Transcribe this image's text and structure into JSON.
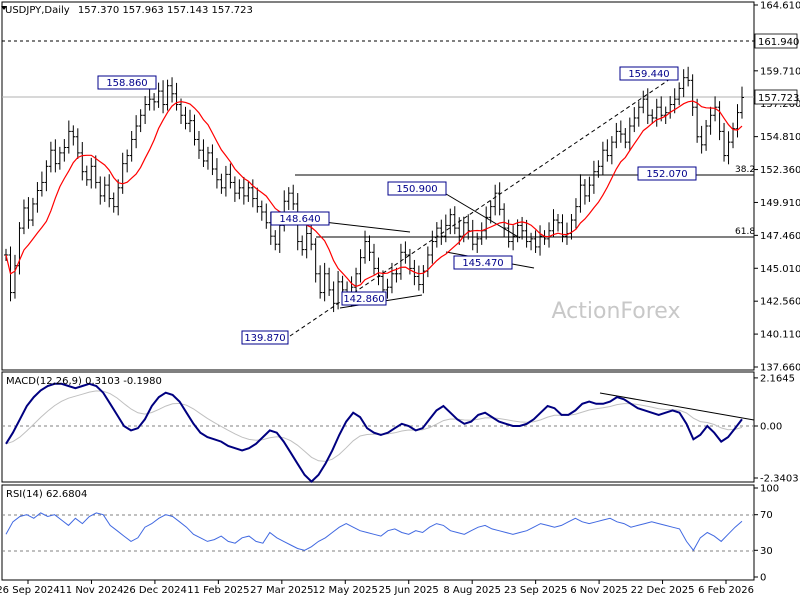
{
  "chart_title": "USDJPY,Daily",
  "ohlc": "157.370 157.963 157.143 157.723",
  "watermark": "ActionForex",
  "colors": {
    "price": "#000000",
    "ma": "#ff0000",
    "macd": "#000080",
    "signal": "#c0c0c0",
    "rsi": "#4169e1",
    "accent_label": "#00008b",
    "watermark": "#c8c8c8"
  },
  "chart_data": [
    {
      "type": "line",
      "panel": "price",
      "ylim": [
        137.66,
        164.61
      ],
      "y_ticks": [
        "164.610",
        "161.940",
        "159.710",
        "157.260",
        "154.810",
        "152.360",
        "149.910",
        "147.460",
        "145.010",
        "142.560",
        "140.110",
        "137.660"
      ],
      "x_ticks": [
        "26 Sep 2024",
        "11 Nov 2024",
        "26 Dec 2024",
        "11 Feb 2025",
        "27 Mar 2025",
        "12 May 2025",
        "25 Jun 2025",
        "8 Aug 2025",
        "23 Sep 2025",
        "6 Nov 2025",
        "22 Dec 2025",
        "6 Feb 2026"
      ],
      "current_price": "157.723",
      "level_161": "161.940",
      "fib_382": "38.2",
      "fib_618": "61.8",
      "level_points": {
        "h_158860": "158.860",
        "h_159440": "159.440",
        "l_152070": "152.070",
        "h_150900": "150.900",
        "l_145470": "145.470",
        "h_148640": "148.640",
        "l_142860": "142.860",
        "l_139870": "139.870"
      },
      "close": [
        146.0,
        143.2,
        145.2,
        148.0,
        149.5,
        148.6,
        149.8,
        150.8,
        151.4,
        152.6,
        153.8,
        152.8,
        153.6,
        154.0,
        155.2,
        154.8,
        153.6,
        152.2,
        151.6,
        152.6,
        151.4,
        150.4,
        151.2,
        150.2,
        149.6,
        151.0,
        152.8,
        153.4,
        154.6,
        155.6,
        156.4,
        157.2,
        157.6,
        157.4,
        158.2,
        157.2,
        158.6,
        158.0,
        157.2,
        156.4,
        155.8,
        156.0,
        154.6,
        153.8,
        153.0,
        153.6,
        152.4,
        151.6,
        151.0,
        152.0,
        151.4,
        150.6,
        151.0,
        150.4,
        151.0,
        150.2,
        149.6,
        149.2,
        148.4,
        147.4,
        146.8,
        148.2,
        150.0,
        150.6,
        149.8,
        147.0,
        146.4,
        147.6,
        146.8,
        144.6,
        143.2,
        144.6,
        143.4,
        142.4,
        144.0,
        143.4,
        142.8,
        143.6,
        144.6,
        145.8,
        147.0,
        146.2,
        145.0,
        144.4,
        143.4,
        143.6,
        144.6,
        144.6,
        146.2,
        146.0,
        145.0,
        144.4,
        143.8,
        144.8,
        146.0,
        147.0,
        148.0,
        147.4,
        148.2,
        149.0,
        148.0,
        147.4,
        148.4,
        147.8,
        146.8,
        147.2,
        147.8,
        148.8,
        149.6,
        150.6,
        149.4,
        148.0,
        147.0,
        147.4,
        148.2,
        147.8,
        147.0,
        147.2,
        146.6,
        147.4,
        147.2,
        147.8,
        148.6,
        148.4,
        147.4,
        147.6,
        148.6,
        149.6,
        151.2,
        150.4,
        151.2,
        152.2,
        152.6,
        153.8,
        153.4,
        154.4,
        155.2,
        155.0,
        154.4,
        155.6,
        156.2,
        157.0,
        157.6,
        156.4,
        156.2,
        157.0,
        156.4,
        156.6,
        157.2,
        157.6,
        158.4,
        159.2,
        159.0,
        157.0,
        154.8,
        154.2,
        155.6,
        156.4,
        157.0,
        155.2,
        153.4,
        154.4,
        155.4,
        156.6,
        157.723
      ]
    },
    {
      "type": "line",
      "panel": "macd",
      "title": "MACD(12,26,9) 0.3103 -0.1980",
      "y_ticks": [
        "2.1645",
        "0.00",
        "-2.3403"
      ],
      "zero_label": "0.00",
      "ylim": [
        -2.34,
        2.16
      ],
      "macd": [
        -0.8,
        -0.3,
        0.3,
        0.9,
        1.3,
        1.6,
        1.8,
        1.9,
        1.9,
        1.8,
        1.7,
        1.8,
        1.9,
        1.8,
        1.5,
        1.0,
        0.5,
        0.0,
        -0.2,
        -0.1,
        0.3,
        0.9,
        1.3,
        1.5,
        1.4,
        1.1,
        0.6,
        0.1,
        -0.3,
        -0.5,
        -0.6,
        -0.7,
        -0.9,
        -1.0,
        -1.1,
        -1.0,
        -0.8,
        -0.5,
        -0.2,
        -0.3,
        -0.7,
        -1.2,
        -1.7,
        -2.2,
        -2.5,
        -2.2,
        -1.7,
        -1.1,
        -0.4,
        0.2,
        0.6,
        0.4,
        -0.1,
        -0.3,
        -0.4,
        -0.3,
        -0.1,
        0.1,
        0.0,
        -0.2,
        -0.1,
        0.3,
        0.7,
        0.9,
        0.6,
        0.3,
        0.1,
        0.2,
        0.5,
        0.6,
        0.4,
        0.2,
        0.1,
        0.0,
        0.0,
        0.1,
        0.3,
        0.6,
        0.9,
        0.8,
        0.5,
        0.5,
        0.7,
        1.0,
        1.1,
        1.0,
        1.0,
        1.1,
        1.3,
        1.2,
        1.0,
        0.8,
        0.7,
        0.6,
        0.5,
        0.6,
        0.7,
        0.6,
        0.1,
        -0.6,
        -0.4,
        0.0,
        -0.3,
        -0.7,
        -0.5,
        -0.1,
        0.3
      ]
    },
    {
      "type": "line",
      "panel": "rsi",
      "title": "RSI(14) 62.6804",
      "ylim": [
        0,
        100
      ],
      "y_ticks": [
        "100",
        "70",
        "30",
        "0"
      ],
      "rsi": [
        48,
        62,
        68,
        70,
        66,
        72,
        68,
        70,
        64,
        58,
        66,
        60,
        68,
        72,
        70,
        58,
        52,
        46,
        40,
        44,
        56,
        60,
        66,
        70,
        68,
        62,
        56,
        48,
        44,
        40,
        42,
        46,
        40,
        38,
        44,
        46,
        40,
        38,
        50,
        44,
        40,
        36,
        32,
        30,
        34,
        40,
        44,
        50,
        56,
        60,
        56,
        52,
        50,
        48,
        46,
        52,
        54,
        50,
        48,
        52,
        50,
        56,
        60,
        58,
        52,
        50,
        48,
        52,
        56,
        58,
        54,
        52,
        50,
        48,
        50,
        52,
        56,
        60,
        58,
        56,
        58,
        62,
        66,
        62,
        60,
        62,
        64,
        66,
        62,
        60,
        56,
        58,
        60,
        62,
        60,
        58,
        56,
        54,
        40,
        30,
        44,
        50,
        46,
        40,
        48,
        56,
        62.68
      ]
    }
  ]
}
